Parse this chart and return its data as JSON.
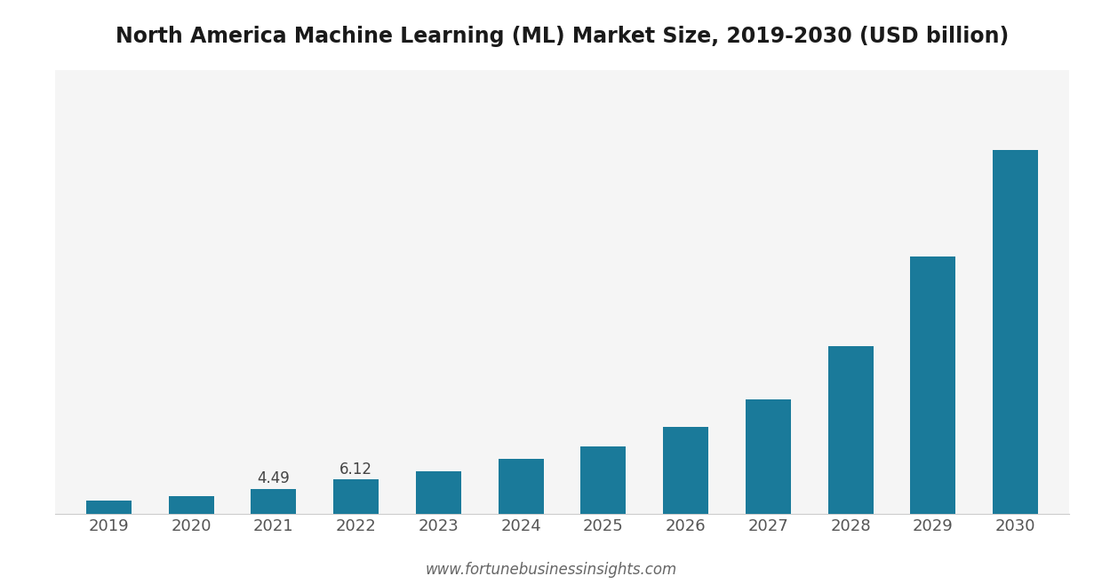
{
  "title": "North America Machine Learning (ML) Market Size, 2019-2030 (USD billion)",
  "years": [
    "2019",
    "2020",
    "2021",
    "2022",
    "2023",
    "2024",
    "2025",
    "2026",
    "2027",
    "2028",
    "2029",
    "2030"
  ],
  "values": [
    2.4,
    3.1,
    4.49,
    6.12,
    7.6,
    9.8,
    12.0,
    15.5,
    20.5,
    30.0,
    46.0,
    65.0
  ],
  "bar_color": "#1a7a9a",
  "background_color": "#ffffff",
  "plot_bg_color": "#f5f5f5",
  "label_values": {
    "2021": "4.49",
    "2022": "6.12"
  },
  "label_fontsize": 12,
  "title_fontsize": 17,
  "tick_fontsize": 13,
  "footer_text": "www.fortunebusinessinsights.com",
  "footer_fontsize": 12
}
